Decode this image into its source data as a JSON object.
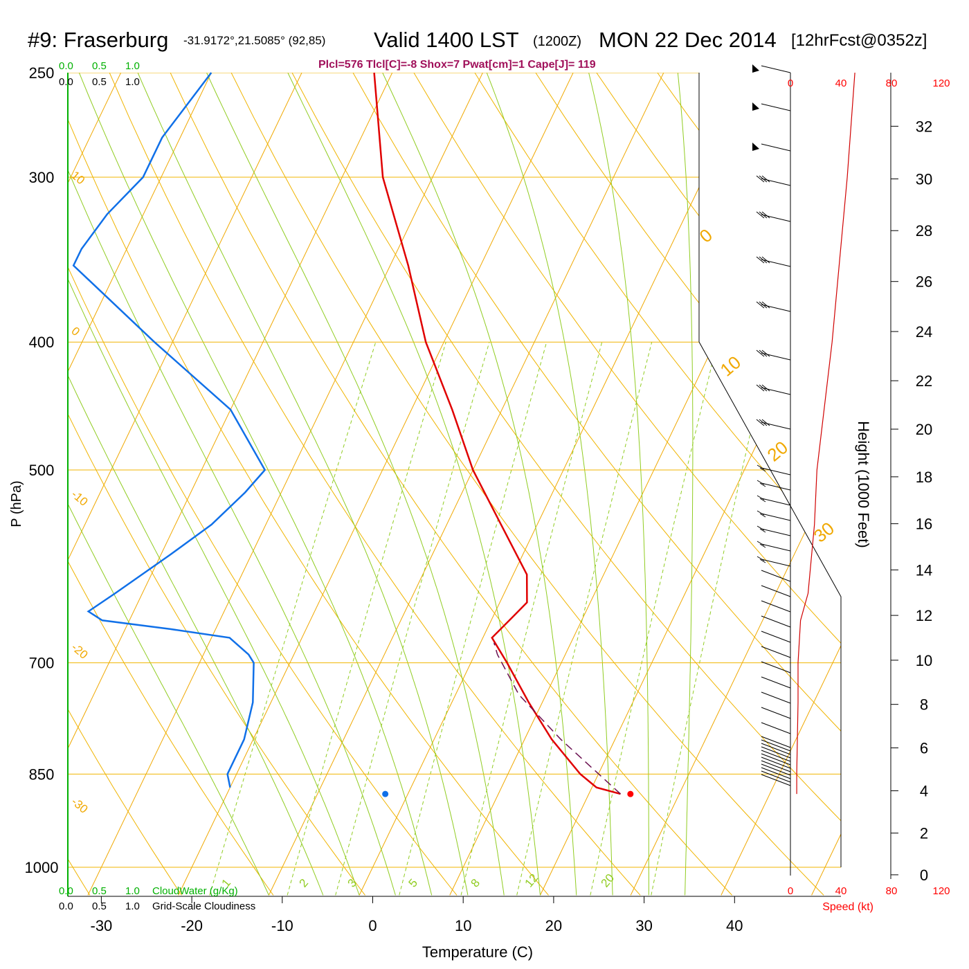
{
  "header": {
    "station": "#9: Fraserburg",
    "coords": "-31.9172°,21.5085° (92,85)",
    "valid": "Valid 1400 LST",
    "utc": "(1200Z)",
    "date": "MON 22 Dec 2014",
    "forecast": "[12hrFcst@0352z]"
  },
  "indices": "Plcl=576 Tlcl[C]=-8 Shox=7 Pwat[cm]=1 Cape[J]= 119",
  "cloud_scale": {
    "top_green": [
      "0.0",
      "0.5",
      "1.0"
    ],
    "top_black": [
      "0.0",
      "0.5",
      "1.0"
    ],
    "bottom_green": [
      "0.0",
      "0.5",
      "1.0"
    ],
    "bottom_black": [
      "0.0",
      "0.5",
      "1.0"
    ],
    "cloudwater_label": "CloudWater (g/Kg)",
    "cloudiness_label": "Grid-Scale Cloudiness"
  },
  "speed_axis": {
    "ticks": [
      "0",
      "40",
      "80",
      "120"
    ],
    "label": "Speed (kt)"
  },
  "colors": {
    "isotherm": "#f0a800",
    "isobar": "#f0b400",
    "dry_adiabat": "#f0b400",
    "moist_adiabat": "#90cc20",
    "mixing_ratio": "#90cc20",
    "cloud_green": "#00b000",
    "temperature": "#e00000",
    "dewpoint": "#1070e8",
    "parcel": "#6a1050",
    "indices_text": "#a0105a",
    "speed_red": "#ff0000"
  },
  "chart_data": {
    "type": "skew-T log-P sounding",
    "xlabel": "Temperature (C)",
    "ylabel": "P (hPa)",
    "y2label": "Height (1000 Feet)",
    "x_ticks": [
      -30,
      -20,
      -10,
      0,
      10,
      20,
      30,
      40
    ],
    "pressure_ticks": [
      250,
      300,
      400,
      500,
      700,
      850,
      1000
    ],
    "height_ticks_kft": [
      0,
      2,
      4,
      6,
      8,
      10,
      12,
      14,
      16,
      18,
      20,
      22,
      24,
      26,
      28,
      30,
      32
    ],
    "isotherm_labels": [
      "10",
      "0",
      "-10",
      "-20",
      "-30",
      "0",
      "10",
      "20",
      "30"
    ],
    "mixing_ratio_labels": [
      "1",
      "2",
      "3",
      "5",
      "8",
      "12",
      "20"
    ],
    "temperature_profile": [
      [
        250,
        -42
      ],
      [
        300,
        -35.5
      ],
      [
        350,
        -28
      ],
      [
        400,
        -22
      ],
      [
        450,
        -15.5
      ],
      [
        500,
        -10
      ],
      [
        550,
        -4
      ],
      [
        600,
        1.5
      ],
      [
        630,
        3
      ],
      [
        650,
        2
      ],
      [
        670,
        1
      ],
      [
        700,
        4
      ],
      [
        750,
        8.5
      ],
      [
        800,
        13
      ],
      [
        850,
        18
      ],
      [
        870,
        20.5
      ],
      [
        880,
        23.5
      ]
    ],
    "dewpoint_profile": [
      [
        250,
        -60
      ],
      [
        280,
        -62
      ],
      [
        300,
        -62
      ],
      [
        320,
        -64
      ],
      [
        340,
        -65
      ],
      [
        350,
        -65
      ],
      [
        400,
        -52
      ],
      [
        450,
        -40
      ],
      [
        500,
        -33
      ],
      [
        520,
        -34
      ],
      [
        550,
        -36
      ],
      [
        580,
        -39
      ],
      [
        620,
        -43
      ],
      [
        640,
        -45
      ],
      [
        650,
        -43
      ],
      [
        660,
        -35
      ],
      [
        670,
        -28
      ],
      [
        690,
        -25
      ],
      [
        700,
        -24
      ],
      [
        750,
        -22
      ],
      [
        800,
        -21
      ],
      [
        850,
        -21
      ],
      [
        870,
        -20
      ]
    ],
    "parcel_path": [
      [
        880,
        23.5
      ],
      [
        800,
        14
      ],
      [
        740,
        7
      ],
      [
        690,
        2.5
      ],
      [
        676,
        1.5
      ]
    ],
    "surface_temperature": {
      "p": 880,
      "t": 24.6
    },
    "surface_dewpoint": {
      "p": 880,
      "t": -2.5
    },
    "wind_speed_profile_kt": [
      [
        880,
        5
      ],
      [
        850,
        5
      ],
      [
        750,
        6
      ],
      [
        700,
        6
      ],
      [
        650,
        8
      ],
      [
        620,
        14
      ],
      [
        550,
        19
      ],
      [
        500,
        21
      ],
      [
        400,
        33
      ],
      [
        300,
        45
      ],
      [
        250,
        51
      ]
    ]
  }
}
